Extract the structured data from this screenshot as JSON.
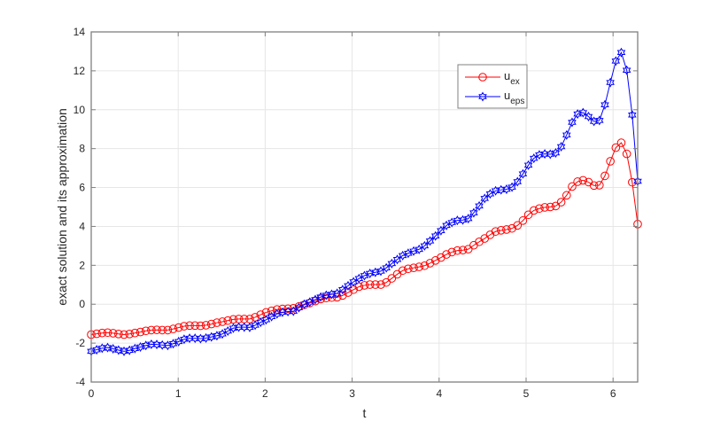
{
  "chart_data": {
    "type": "line",
    "title": "",
    "xlabel": "t",
    "ylabel": "exact solution and its approximation",
    "xlim": [
      0,
      6.2832
    ],
    "ylim": [
      -4,
      14
    ],
    "xticks": [
      "0",
      "1",
      "2",
      "3",
      "4",
      "5",
      "6"
    ],
    "yticks": [
      "-4",
      "-2",
      "0",
      "2",
      "4",
      "6",
      "8",
      "10",
      "12",
      "14"
    ],
    "grid": true,
    "legend_position": "top-right",
    "x_step": "2*pi/100",
    "series": [
      {
        "name": "u_ex",
        "label_main": "u",
        "label_sub": "ex",
        "color": "#ff0000",
        "marker": "circle",
        "values": [
          -1.56,
          -1.52,
          -1.48,
          -1.46,
          -1.49,
          -1.53,
          -1.56,
          -1.53,
          -1.48,
          -1.43,
          -1.37,
          -1.33,
          -1.32,
          -1.33,
          -1.33,
          -1.27,
          -1.2,
          -1.13,
          -1.1,
          -1.1,
          -1.11,
          -1.08,
          -1.02,
          -0.95,
          -0.9,
          -0.84,
          -0.78,
          -0.76,
          -0.76,
          -0.76,
          -0.67,
          -0.54,
          -0.42,
          -0.34,
          -0.27,
          -0.24,
          -0.23,
          -0.21,
          -0.12,
          -0.03,
          0.06,
          0.16,
          0.27,
          0.32,
          0.34,
          0.36,
          0.45,
          0.6,
          0.75,
          0.9,
          0.97,
          1.01,
          1.01,
          1.01,
          1.12,
          1.33,
          1.54,
          1.73,
          1.82,
          1.87,
          1.92,
          1.98,
          2.11,
          2.25,
          2.4,
          2.56,
          2.68,
          2.76,
          2.78,
          2.83,
          3.03,
          3.21,
          3.38,
          3.57,
          3.74,
          3.8,
          3.84,
          3.9,
          4.05,
          4.3,
          4.6,
          4.82,
          4.92,
          4.98,
          5.0,
          5.05,
          5.25,
          5.6,
          6.05,
          6.3,
          6.37,
          6.28,
          6.1,
          6.12,
          6.6,
          7.35,
          8.05,
          8.3,
          7.73,
          6.27,
          4.12
        ]
      },
      {
        "name": "u_eps",
        "label_main": "u",
        "label_sub": "eps",
        "color": "#0000ff",
        "marker": "hexagram",
        "values": [
          -2.42,
          -2.34,
          -2.26,
          -2.23,
          -2.29,
          -2.36,
          -2.42,
          -2.37,
          -2.28,
          -2.2,
          -2.12,
          -2.06,
          -2.07,
          -2.1,
          -2.12,
          -2.03,
          -1.92,
          -1.8,
          -1.75,
          -1.75,
          -1.77,
          -1.74,
          -1.68,
          -1.62,
          -1.53,
          -1.38,
          -1.23,
          -1.18,
          -1.18,
          -1.19,
          -1.08,
          -0.93,
          -0.8,
          -0.64,
          -0.5,
          -0.41,
          -0.38,
          -0.36,
          -0.18,
          0.0,
          0.11,
          0.24,
          0.37,
          0.46,
          0.51,
          0.56,
          0.75,
          0.95,
          1.15,
          1.32,
          1.47,
          1.58,
          1.64,
          1.7,
          1.87,
          2.09,
          2.3,
          2.5,
          2.62,
          2.73,
          2.82,
          3.0,
          3.25,
          3.51,
          3.78,
          4.05,
          4.2,
          4.31,
          4.33,
          4.4,
          4.7,
          5.05,
          5.44,
          5.67,
          5.83,
          5.88,
          5.91,
          6.02,
          6.3,
          6.7,
          7.15,
          7.5,
          7.68,
          7.73,
          7.71,
          7.78,
          8.1,
          8.7,
          9.35,
          9.78,
          9.85,
          9.65,
          9.4,
          9.45,
          10.25,
          11.4,
          12.5,
          12.94,
          12.03,
          9.73,
          6.32
        ]
      }
    ]
  }
}
